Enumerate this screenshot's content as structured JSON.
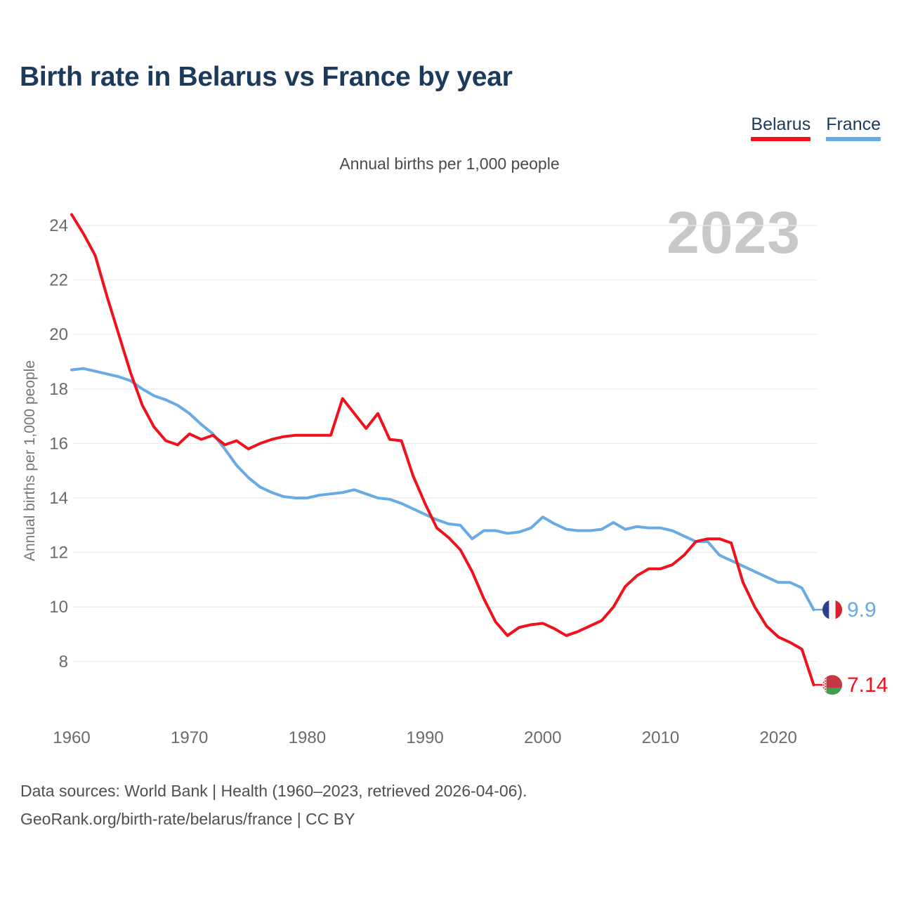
{
  "title": "Birth rate in Belarus vs France by year",
  "subtitle": "Annual births per 1,000 people",
  "watermark": "2023",
  "legend": {
    "belarus": {
      "label": "Belarus",
      "color": "#f0111d"
    },
    "france": {
      "label": "France",
      "color": "#68aae3"
    }
  },
  "footer": {
    "line1": "Data sources: World Bank | Health (1960–2023, retrieved 2026-04-06).",
    "line2": "GeoRank.org/birth-rate/belarus/france | CC BY"
  },
  "chart_data": {
    "type": "line",
    "title": "Birth rate in Belarus vs France by year",
    "xlabel": "",
    "ylabel": "Annual births per 1,000 people",
    "ylim": [
      6.8,
      24.6
    ],
    "grid": "horizontal",
    "legend_position": "top-right",
    "y_ticks": [
      24,
      22,
      20,
      18,
      16,
      14,
      12,
      10,
      8
    ],
    "x_ticks": [
      1960,
      1970,
      1980,
      1990,
      2000,
      2010,
      2020
    ],
    "x": [
      1960,
      1961,
      1962,
      1963,
      1964,
      1965,
      1966,
      1967,
      1968,
      1969,
      1970,
      1971,
      1972,
      1973,
      1974,
      1975,
      1976,
      1977,
      1978,
      1979,
      1980,
      1981,
      1982,
      1983,
      1984,
      1985,
      1986,
      1987,
      1988,
      1989,
      1990,
      1991,
      1992,
      1993,
      1994,
      1995,
      1996,
      1997,
      1998,
      1999,
      2000,
      2001,
      2002,
      2003,
      2004,
      2005,
      2006,
      2007,
      2008,
      2009,
      2010,
      2011,
      2012,
      2013,
      2014,
      2015,
      2016,
      2017,
      2018,
      2019,
      2020,
      2021,
      2022,
      2023
    ],
    "series": [
      {
        "name": "Belarus",
        "color": "#f0111d",
        "end_label": "7.14",
        "end_icon": "belarus-flag-icon",
        "values": [
          24.4,
          23.7,
          22.9,
          21.4,
          20.0,
          18.6,
          17.4,
          16.6,
          16.1,
          15.95,
          16.35,
          16.15,
          16.3,
          15.95,
          16.1,
          15.8,
          16.0,
          16.15,
          16.25,
          16.3,
          16.3,
          16.3,
          16.3,
          17.65,
          17.1,
          16.55,
          17.1,
          16.15,
          16.1,
          14.8,
          13.8,
          12.9,
          12.55,
          12.1,
          11.3,
          10.3,
          9.45,
          8.95,
          9.25,
          9.35,
          9.4,
          9.2,
          8.95,
          9.1,
          9.3,
          9.5,
          10.0,
          10.75,
          11.15,
          11.4,
          11.4,
          11.55,
          11.9,
          12.4,
          12.5,
          12.5,
          12.35,
          10.9,
          10.0,
          9.3,
          8.9,
          8.7,
          8.45,
          7.14
        ]
      },
      {
        "name": "France",
        "color": "#68aae3",
        "end_label": "9.9",
        "end_icon": "france-flag-icon",
        "values": [
          18.7,
          18.75,
          18.65,
          18.55,
          18.45,
          18.3,
          18.0,
          17.75,
          17.6,
          17.4,
          17.1,
          16.7,
          16.35,
          15.8,
          15.2,
          14.75,
          14.4,
          14.2,
          14.05,
          14.0,
          14.0,
          14.1,
          14.15,
          14.2,
          14.3,
          14.15,
          14.0,
          13.95,
          13.8,
          13.6,
          13.4,
          13.2,
          13.05,
          13.0,
          12.5,
          12.8,
          12.8,
          12.7,
          12.75,
          12.9,
          13.3,
          13.05,
          12.85,
          12.8,
          12.8,
          12.85,
          13.1,
          12.85,
          12.95,
          12.9,
          12.9,
          12.8,
          12.6,
          12.4,
          12.4,
          11.9,
          11.7,
          11.5,
          11.3,
          11.1,
          10.9,
          10.9,
          10.7,
          9.9
        ]
      }
    ],
    "end_markers": [
      {
        "series": "France",
        "icon": "france-flag-icon",
        "value_label": "9.9",
        "flag_colors": {
          "blue": "#2c3f8f",
          "white": "#f5f5f5",
          "red": "#d6212f"
        }
      },
      {
        "series": "Belarus",
        "icon": "belarus-flag-icon",
        "value_label": "7.14",
        "flag_colors": {
          "red": "#c43844",
          "green": "#3f9e4b",
          "white": "#ffffff"
        }
      }
    ]
  }
}
